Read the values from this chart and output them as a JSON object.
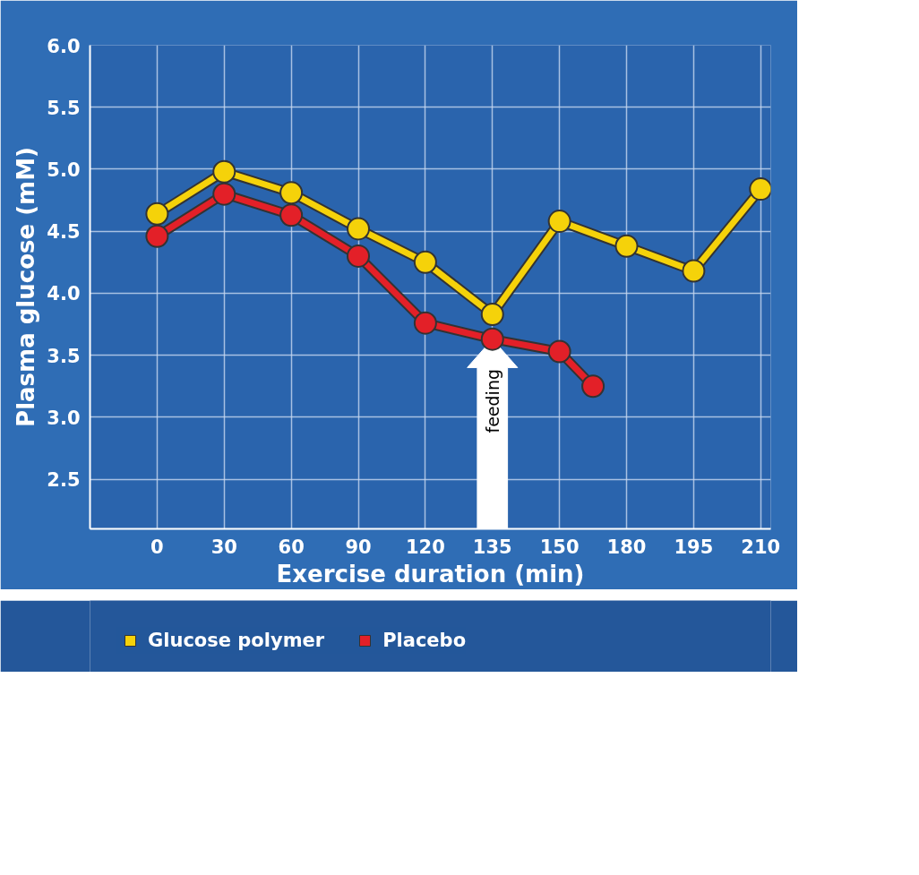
{
  "chart_data": {
    "type": "line",
    "xlabel": "Exercise duration (min)",
    "ylabel": "Plasma glucose (mM)",
    "categories": [
      "0",
      null,
      "30",
      null,
      "60",
      null,
      "90",
      null,
      "120",
      null,
      "135",
      null,
      "150",
      null,
      "180",
      null,
      "195",
      null,
      "210"
    ],
    "series": [
      {
        "name": "Glucose polymer",
        "color": "#f5d20a",
        "values": [
          4.64,
          null,
          4.98,
          null,
          4.81,
          null,
          4.52,
          null,
          4.25,
          null,
          3.83,
          null,
          4.58,
          null,
          4.38,
          null,
          4.18,
          null,
          4.84
        ]
      },
      {
        "name": "Placebo",
        "color": "#e32028",
        "values": [
          4.46,
          null,
          4.8,
          null,
          4.63,
          null,
          4.3,
          null,
          3.76,
          null,
          3.63,
          null,
          3.53,
          3.25,
          null,
          null,
          null,
          null,
          null
        ]
      }
    ],
    "ylim": [
      2.1,
      6.0
    ],
    "yticks": [
      2.5,
      {
        "value": 3,
        "label": "3.0"
      },
      3.5,
      {
        "value": 4,
        "label": "4.0"
      },
      4.5,
      {
        "value": 5,
        "label": "5.0"
      },
      5.5,
      {
        "value": 6,
        "label": "6.0"
      }
    ],
    "annotations": [
      {
        "text": "feeding",
        "x": "135",
        "y": 3.63
      }
    ],
    "grid": true,
    "legend": "bottom",
    "marker": "circle",
    "line_style": "solid"
  }
}
